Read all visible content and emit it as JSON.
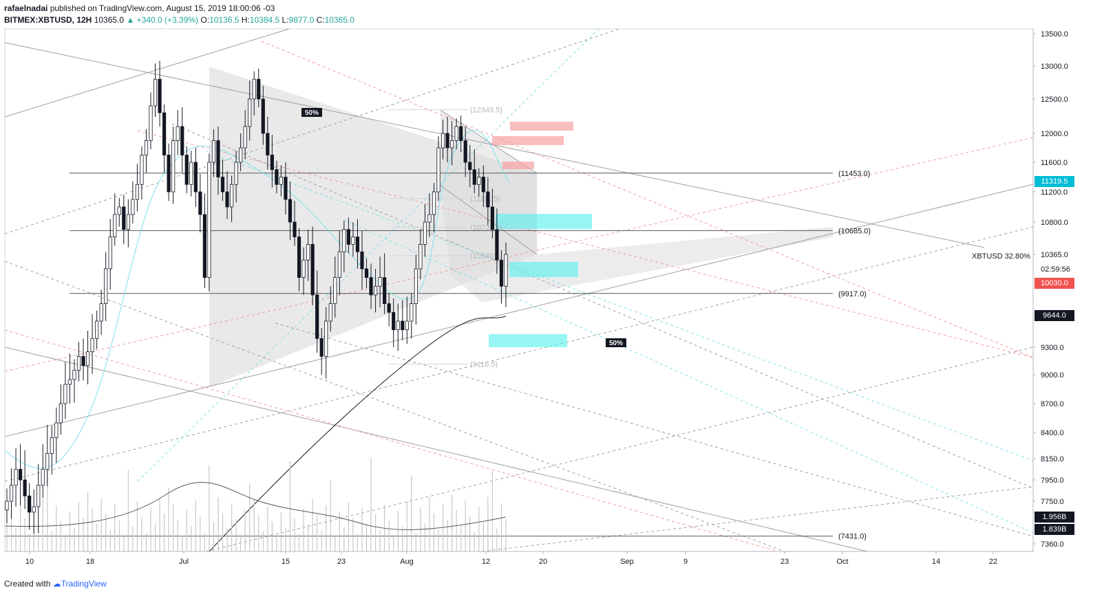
{
  "header": {
    "author": "rafaelnadai",
    "published": " published on TradingView.com, August 15, 2019 18:00:06 -03",
    "symbol": "BITMEX:XBTUSD, 12H",
    "last": "10365.0",
    "change": "▲ +340.0 (+3.39%)",
    "o_label": "O:",
    "o_value": "10136.5",
    "h_label": "H:",
    "h_value": "10384.5",
    "l_label": "L:",
    "l_value": "9877.0",
    "c_label": "C:",
    "c_value": "10365.0"
  },
  "footer": {
    "created_with": "Created with",
    "brand": "TradingView"
  },
  "price_tags": {
    "tag_11319": "11319.5",
    "tag_10030": "10030.0",
    "tag_9644": "9644.0",
    "vol_1956": "1.956B",
    "vol_1839": "1.839B",
    "symbol_pct": "XBTUSD 32.80%",
    "last_price": "10365.0",
    "countdown": "02:59:56"
  },
  "colors": {
    "up": "#ffffff",
    "down": "#131722",
    "accent_teal": "#26a69a",
    "red_tag": "#ef5350",
    "cyan": "#00e5e5",
    "pink": "#f7a1a1"
  },
  "chart_data": {
    "type": "candlestick",
    "title": "",
    "ylim": [
      7300,
      13600
    ],
    "y_ticks": [
      "13500.0",
      "13000.0",
      "12500.0",
      "12000.0",
      "11600.0",
      "11200.0",
      "10800.0",
      "10365.0",
      "9300.0",
      "9000.0",
      "8700.0",
      "8400.0",
      "8150.0",
      "7950.0",
      "7750.0",
      "7360.0"
    ],
    "y_tick_values": [
      13500,
      13000,
      12500,
      12000,
      11600,
      11200,
      10800,
      10365,
      9300,
      9000,
      8700,
      8400,
      8150,
      7950,
      7750,
      7360
    ],
    "x_ticks": [
      "10",
      "18",
      "Jul",
      "15",
      "23",
      "Aug",
      "12",
      "20",
      "Sep",
      "9",
      "23",
      "Oct",
      "14",
      "22"
    ],
    "horizontal_levels": [
      {
        "label": "(11453.0)",
        "value": 11453
      },
      {
        "label": "(10685.0)",
        "value": 10685
      },
      {
        "label": "(9917.0)",
        "value": 9917
      },
      {
        "label": "(7431.0)",
        "value": 7431
      }
    ],
    "ghost_levels": [
      {
        "label": "(12343.5)",
        "value": 12343.5
      },
      {
        "label": "(11111.5)",
        "value": 11111.5
      },
      {
        "label": "(10730.5)",
        "value": 10730.5
      },
      {
        "label": "(10349)",
        "value": 10349
      },
      {
        "label": "(9116.5)",
        "value": 9116.5
      }
    ],
    "annotations": [
      "50%",
      "50%"
    ],
    "candles_close": [
      7750,
      7900,
      8050,
      7950,
      7800,
      7650,
      7700,
      7900,
      8050,
      8200,
      8350,
      8500,
      8700,
      8900,
      8950,
      9050,
      9200,
      9100,
      9250,
      9400,
      9600,
      9800,
      10200,
      10600,
      10900,
      11000,
      10700,
      10900,
      11100,
      11300,
      11700,
      11900,
      12400,
      12800,
      12300,
      11700,
      11200,
      11900,
      12100,
      11700,
      11300,
      11600,
      11200,
      10900,
      10100,
      11600,
      11900,
      11400,
      11200,
      11000,
      11300,
      11600,
      11800,
      12100,
      12500,
      12800,
      12500,
      12000,
      11700,
      11500,
      11300,
      11400,
      11100,
      10800,
      10600,
      10100,
      10300,
      10500,
      9900,
      9400,
      9200,
      9600,
      9800,
      10100,
      10400,
      10700,
      10500,
      10600,
      10400,
      10200,
      10100,
      9900,
      10000,
      10100,
      9800,
      9700,
      9500,
      9600,
      9500,
      9600,
      9800,
      10200,
      10500,
      10800,
      10900,
      11200,
      11800,
      12000,
      11800,
      11900,
      12100,
      11900,
      11600,
      11500,
      11300,
      11400,
      11200,
      11000,
      10700,
      10300,
      10000,
      10365
    ],
    "note_series": "candles_close lists approximate 12H closing prices read from the chart"
  }
}
